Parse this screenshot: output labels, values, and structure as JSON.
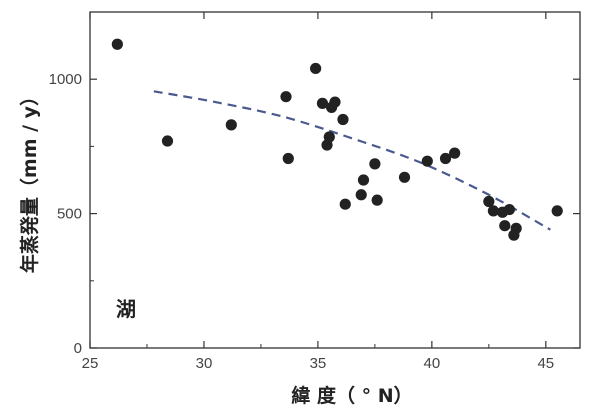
{
  "chart_data": {
    "type": "scatter",
    "xlabel": "緯 度（ ° N）",
    "ylabel": "年蒸発量（mm / y）",
    "annotation": "湖",
    "xlim": [
      25,
      46.5
    ],
    "ylim": [
      0,
      1250
    ],
    "xticks": [
      25,
      30,
      35,
      40,
      45
    ],
    "yticks": [
      0,
      500,
      1000
    ],
    "grid": false,
    "colors": {
      "points": "#222222",
      "trend": "#4a5a8f",
      "frame": "#333333"
    },
    "points": [
      {
        "x": 26.2,
        "y": 1130
      },
      {
        "x": 28.4,
        "y": 770
      },
      {
        "x": 31.2,
        "y": 830
      },
      {
        "x": 33.6,
        "y": 935
      },
      {
        "x": 33.7,
        "y": 705
      },
      {
        "x": 34.9,
        "y": 1040
      },
      {
        "x": 35.2,
        "y": 910
      },
      {
        "x": 35.4,
        "y": 755
      },
      {
        "x": 35.5,
        "y": 785
      },
      {
        "x": 35.6,
        "y": 895
      },
      {
        "x": 35.75,
        "y": 915
      },
      {
        "x": 36.1,
        "y": 850
      },
      {
        "x": 36.2,
        "y": 535
      },
      {
        "x": 36.9,
        "y": 570
      },
      {
        "x": 37.0,
        "y": 625
      },
      {
        "x": 37.5,
        "y": 685
      },
      {
        "x": 37.6,
        "y": 550
      },
      {
        "x": 38.8,
        "y": 635
      },
      {
        "x": 39.8,
        "y": 695
      },
      {
        "x": 40.6,
        "y": 705
      },
      {
        "x": 41.0,
        "y": 725
      },
      {
        "x": 42.5,
        "y": 545
      },
      {
        "x": 42.7,
        "y": 510
      },
      {
        "x": 43.1,
        "y": 505
      },
      {
        "x": 43.2,
        "y": 455
      },
      {
        "x": 43.4,
        "y": 515
      },
      {
        "x": 43.6,
        "y": 420
      },
      {
        "x": 43.7,
        "y": 445
      },
      {
        "x": 45.5,
        "y": 510
      }
    ],
    "trend": [
      {
        "x": 27.8,
        "y": 955
      },
      {
        "x": 30.5,
        "y": 915
      },
      {
        "x": 33.5,
        "y": 860
      },
      {
        "x": 36.5,
        "y": 780
      },
      {
        "x": 39.5,
        "y": 690
      },
      {
        "x": 42.5,
        "y": 570
      },
      {
        "x": 45.2,
        "y": 440
      }
    ]
  }
}
